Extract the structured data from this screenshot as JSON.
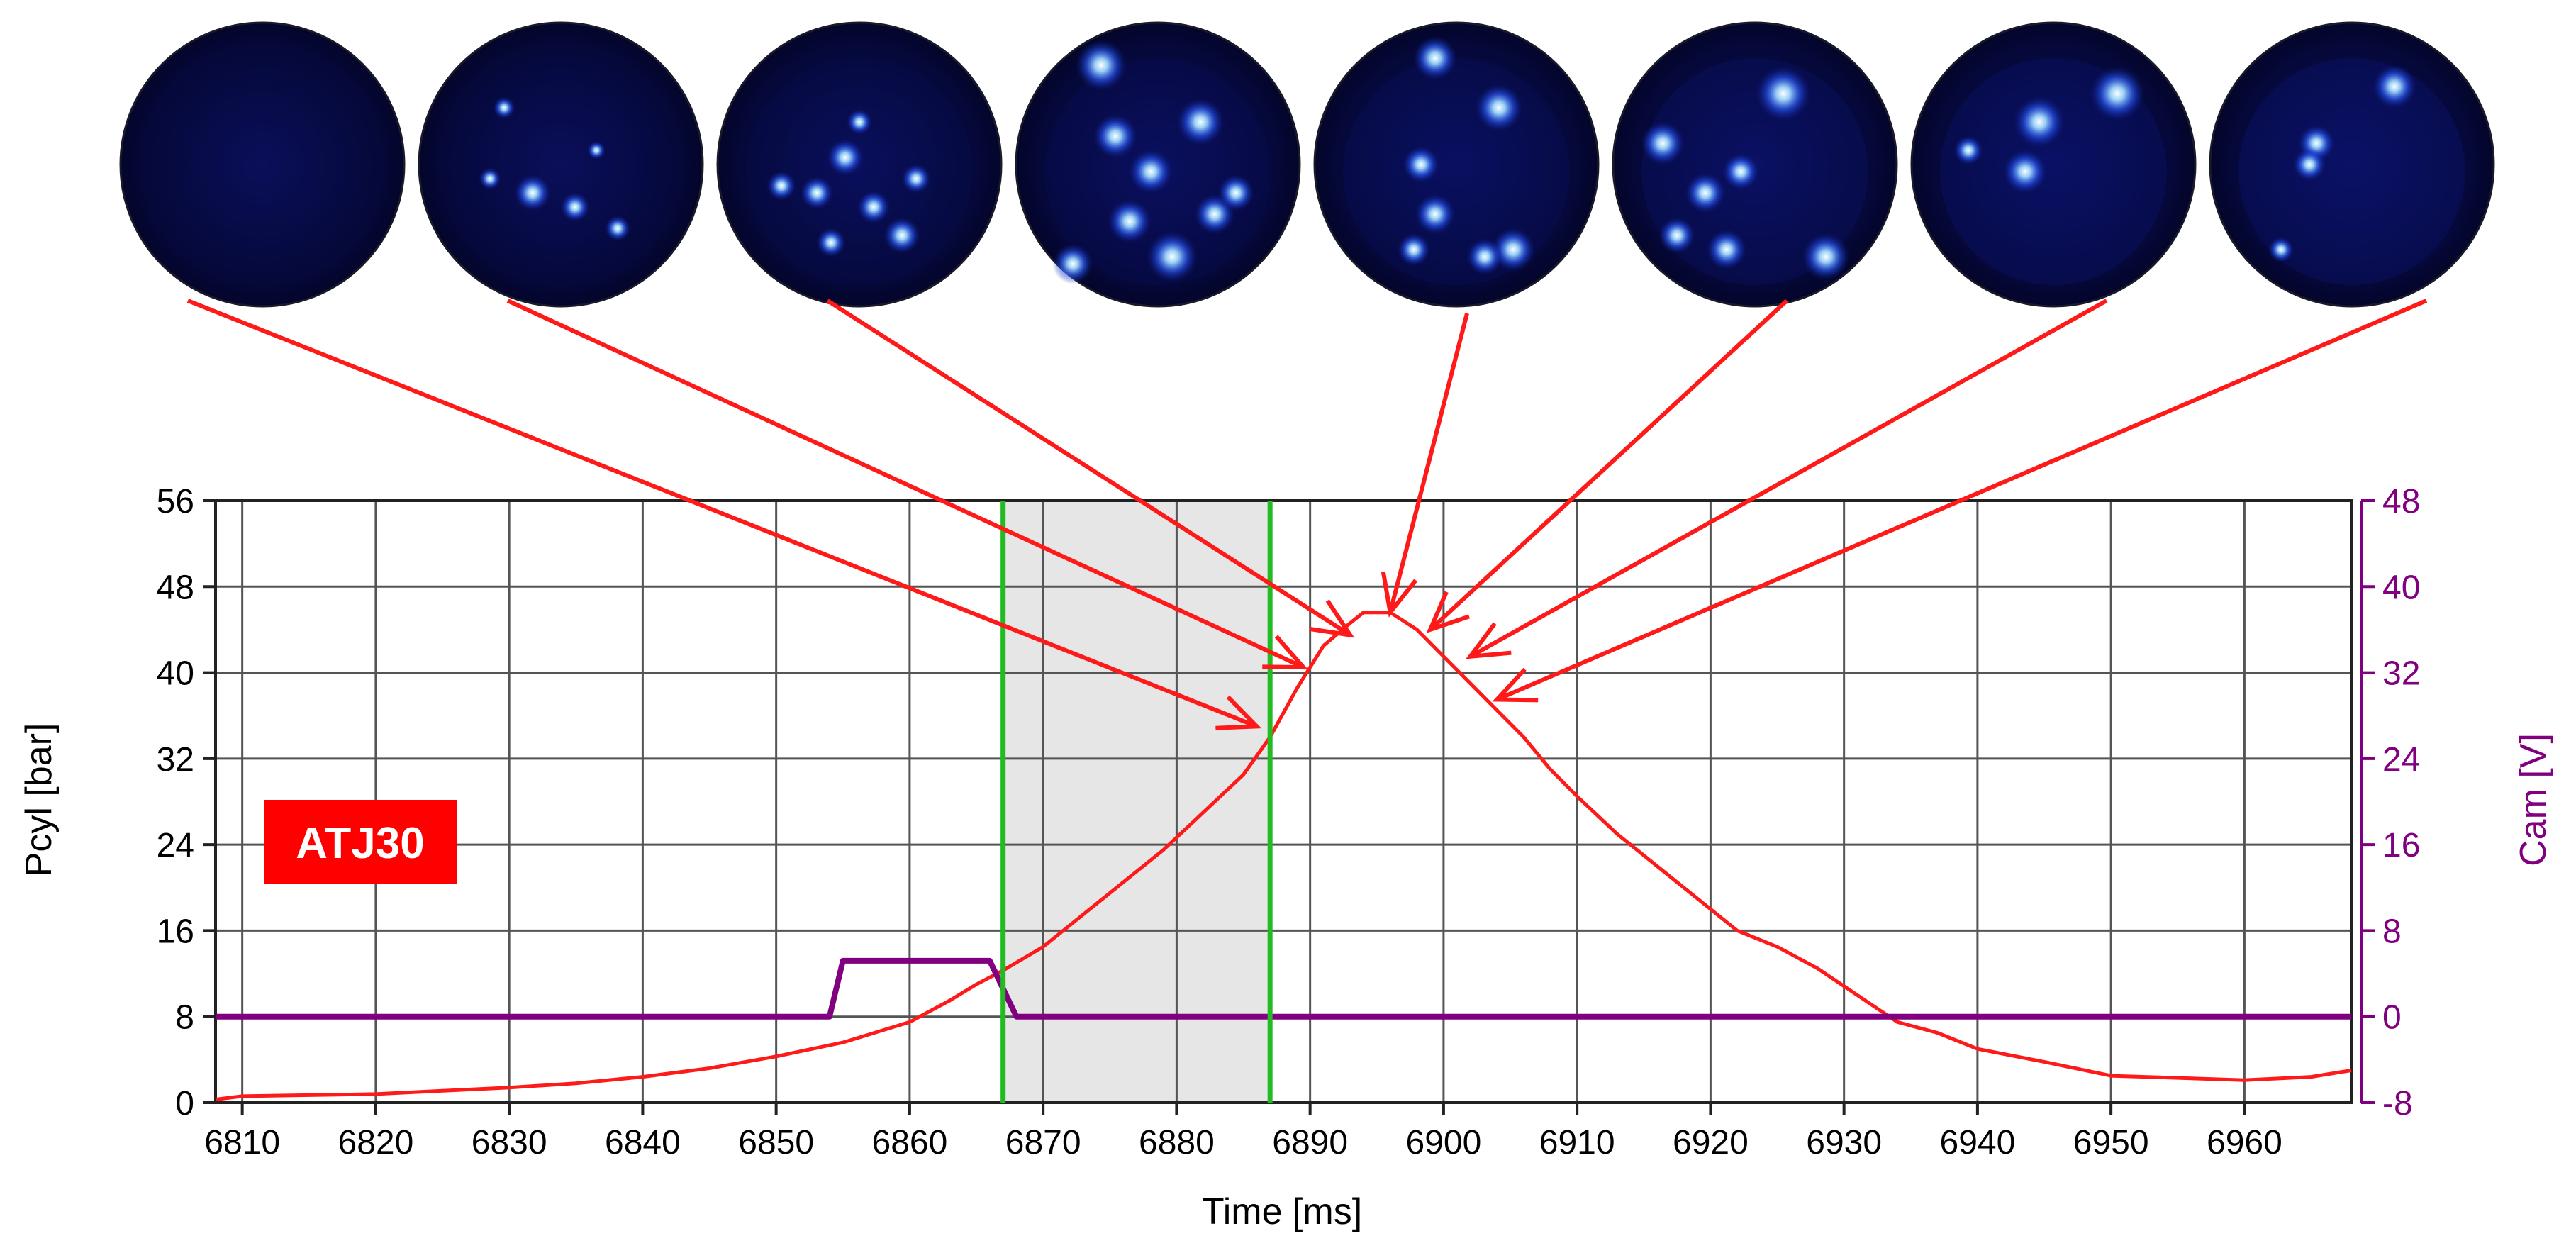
{
  "chart_data": {
    "type": "line",
    "xlabel": "Time [ms]",
    "ylabel_left": "Pcyl [bar]",
    "ylabel_right": "Cam [V]",
    "xlim": [
      6808,
      6968
    ],
    "ylim_left": [
      0,
      56
    ],
    "ylim_right": [
      -8,
      48
    ],
    "x_ticks": [
      6810,
      6820,
      6830,
      6840,
      6850,
      6860,
      6870,
      6880,
      6890,
      6900,
      6910,
      6920,
      6930,
      6940,
      6950,
      6960
    ],
    "y_left_ticks": [
      0,
      8,
      16,
      24,
      32,
      40,
      48,
      56
    ],
    "y_right_ticks": [
      -8,
      0,
      8,
      16,
      24,
      32,
      40,
      48
    ],
    "grid": true,
    "label_box": "ATJ30",
    "colors": {
      "pressure": "#ff1a1a",
      "cam": "#800080",
      "markers": "#22bb22",
      "shade": "#e6e6e6",
      "label_box": "#ff0000",
      "arrows": "#ff1a1a",
      "right_axis": "#800080"
    },
    "shaded_region": [
      6867,
      6887
    ],
    "vertical_markers": [
      6867,
      6887
    ],
    "series": [
      {
        "axis": "left",
        "x": [
          6808,
          6810,
          6815,
          6820,
          6825,
          6830,
          6835,
          6840,
          6845,
          6850,
          6855,
          6860,
          6863,
          6865,
          6867,
          6870,
          6873,
          6876,
          6879,
          6882,
          6885,
          6887,
          6889,
          6891,
          6893,
          6894,
          6896,
          6898,
          6900,
          6902,
          6904,
          6906,
          6908,
          6910,
          6913,
          6916,
          6919,
          6922,
          6925,
          6928,
          6931,
          6934,
          6937,
          6940,
          6945,
          6950,
          6955,
          6960,
          6965,
          6968
        ],
        "y": [
          0.3,
          0.6,
          0.7,
          0.8,
          1.1,
          1.4,
          1.8,
          2.4,
          3.2,
          4.3,
          5.6,
          7.5,
          9.5,
          11.0,
          12.3,
          14.5,
          17.5,
          20.5,
          23.5,
          27.0,
          30.5,
          34.0,
          38.5,
          42.5,
          44.6,
          45.6,
          45.6,
          44.0,
          41.5,
          39.0,
          36.5,
          34.0,
          31.0,
          28.5,
          25.0,
          22.0,
          19.0,
          16.0,
          14.5,
          12.5,
          10.0,
          7.5,
          6.5,
          5.0,
          3.8,
          2.5,
          2.3,
          2.1,
          2.4,
          3.0
        ]
      },
      {
        "axis": "right",
        "x": [
          6808,
          6854,
          6855,
          6866,
          6868,
          6968
        ],
        "y": [
          0,
          0,
          5.2,
          5.2,
          0,
          0
        ]
      }
    ],
    "image_strip": {
      "count": 8,
      "arrow_targets_x": [
        6886,
        6889.5,
        6893,
        6896,
        6899,
        6902,
        6904
      ],
      "arrow_targets_y": [
        35.0,
        40.5,
        43.5,
        45.6,
        44.0,
        41.5,
        37.5
      ]
    }
  }
}
